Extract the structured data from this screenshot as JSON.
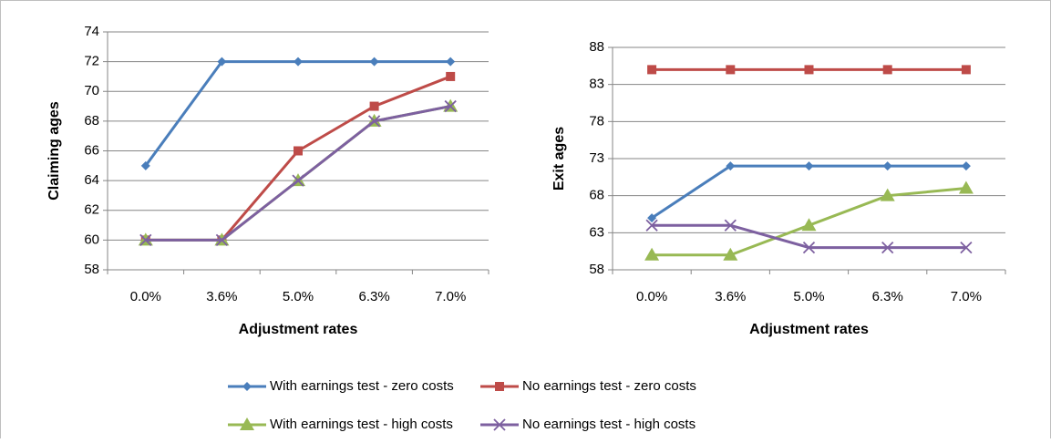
{
  "chart_data": [
    {
      "type": "line",
      "y_label": "Claiming ages",
      "x_label": "Adjustment rates",
      "categories": [
        "0.0%",
        "3.6%",
        "5.0%",
        "6.3%",
        "7.0%"
      ],
      "ylim": [
        58,
        74
      ],
      "yticks": [
        58,
        60,
        62,
        64,
        66,
        68,
        70,
        72,
        74
      ],
      "grid": true,
      "series": [
        {
          "name": "With earnings test - zero costs",
          "color": "#4a7ebb",
          "marker": "diamond",
          "values": [
            65,
            72,
            72,
            72,
            72
          ]
        },
        {
          "name": "No earnings test - zero costs",
          "color": "#be4b48",
          "marker": "square",
          "values": [
            60,
            60,
            66,
            69,
            71
          ]
        },
        {
          "name": "With earnings test - high costs",
          "color": "#98b954",
          "marker": "triangle",
          "values": [
            60,
            60,
            64,
            68,
            69
          ]
        },
        {
          "name": "No earnings test - high costs",
          "color": "#7d60a0",
          "marker": "x",
          "values": [
            60,
            60,
            64,
            68,
            69
          ]
        }
      ]
    },
    {
      "type": "line",
      "y_label": "Exit ages",
      "x_label": "Adjustment rates",
      "categories": [
        "0.0%",
        "3.6%",
        "5.0%",
        "6.3%",
        "7.0%"
      ],
      "ylim": [
        58,
        88
      ],
      "yticks": [
        58,
        63,
        68,
        73,
        78,
        83,
        88
      ],
      "grid": true,
      "series": [
        {
          "name": "With earnings test - zero costs",
          "color": "#4a7ebb",
          "marker": "diamond",
          "values": [
            65,
            72,
            72,
            72,
            72
          ]
        },
        {
          "name": "No earnings test - zero costs",
          "color": "#be4b48",
          "marker": "square",
          "values": [
            85,
            85,
            85,
            85,
            85
          ]
        },
        {
          "name": "With earnings test - high costs",
          "color": "#98b954",
          "marker": "triangle",
          "values": [
            60,
            60,
            64,
            68,
            69
          ]
        },
        {
          "name": "No earnings test - high costs",
          "color": "#7d60a0",
          "marker": "x",
          "values": [
            64,
            64,
            61,
            61,
            61
          ]
        }
      ]
    }
  ]
}
